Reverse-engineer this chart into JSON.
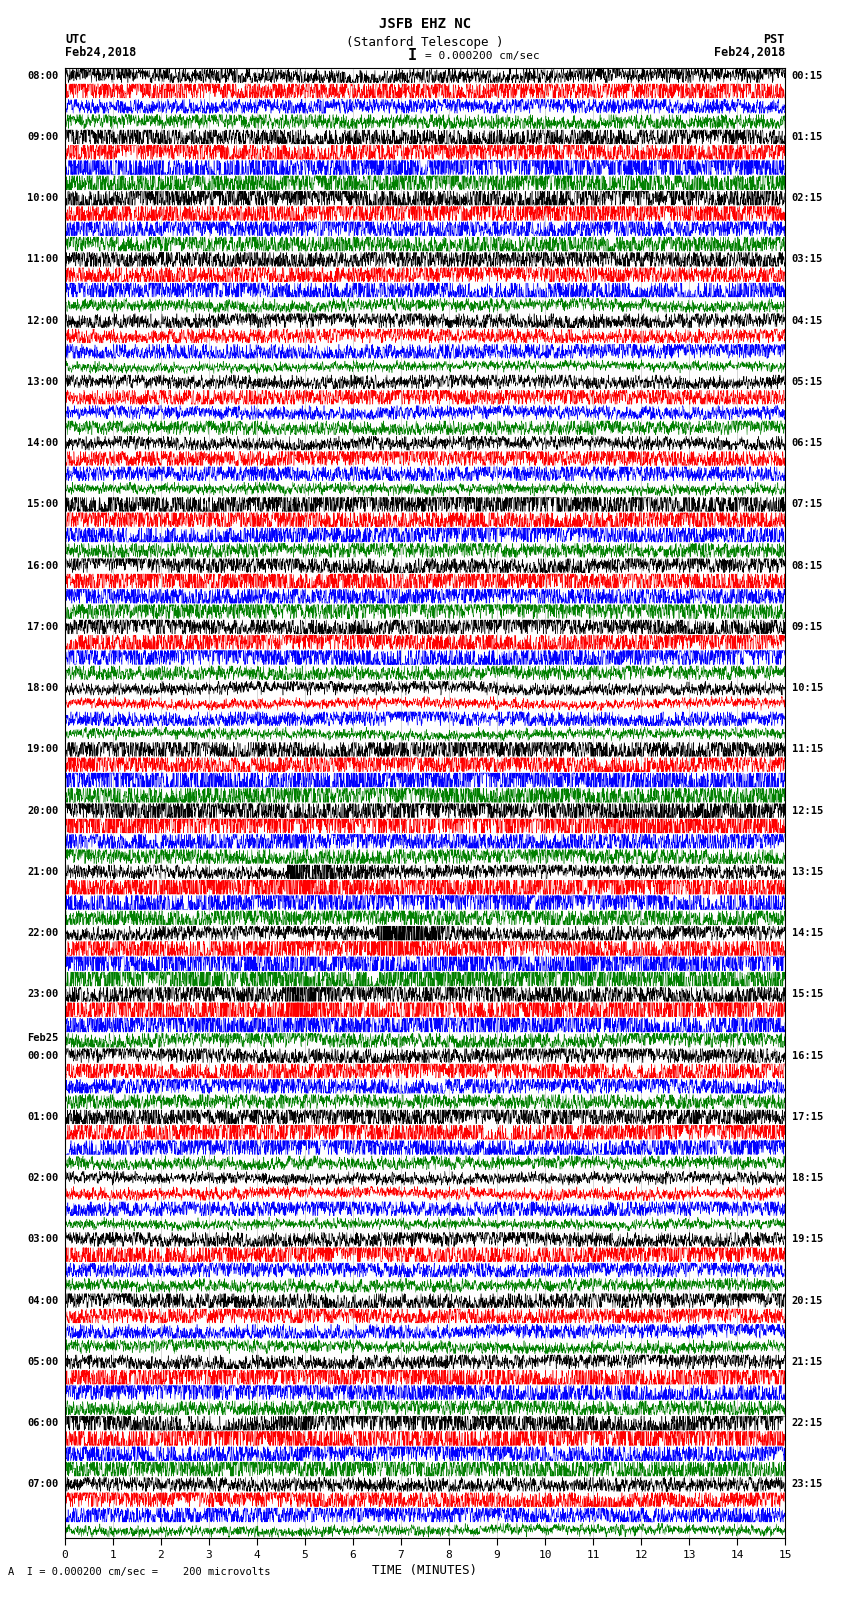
{
  "title_line1": "JSFB EHZ NC",
  "title_line2": "(Stanford Telescope )",
  "scale_label": "= 0.000200 cm/sec",
  "bottom_label": "A  I = 0.000200 cm/sec =    200 microvolts",
  "xlabel": "TIME (MINUTES)",
  "left_date": "Feb24,2018",
  "right_date": "Feb24,2018",
  "left_tz": "UTC",
  "right_tz": "PST",
  "left_times": [
    "08:00",
    "09:00",
    "10:00",
    "11:00",
    "12:00",
    "13:00",
    "14:00",
    "15:00",
    "16:00",
    "17:00",
    "18:00",
    "19:00",
    "20:00",
    "21:00",
    "22:00",
    "23:00",
    "Feb25",
    "00:00",
    "01:00",
    "02:00",
    "03:00",
    "04:00",
    "05:00",
    "06:00",
    "07:00"
  ],
  "right_times": [
    "00:15",
    "01:15",
    "02:15",
    "03:15",
    "04:15",
    "05:15",
    "06:15",
    "07:15",
    "08:15",
    "09:15",
    "10:15",
    "11:15",
    "12:15",
    "13:15",
    "14:15",
    "15:15",
    "16:15",
    "17:15",
    "18:15",
    "19:15",
    "20:15",
    "21:15",
    "22:15",
    "23:15"
  ],
  "colors": [
    "black",
    "red",
    "blue",
    "green"
  ],
  "bg_color": "white",
  "n_rows": 24,
  "traces_per_row": 4,
  "minutes": 15,
  "figwidth": 8.5,
  "figheight": 16.13,
  "dpi": 100
}
